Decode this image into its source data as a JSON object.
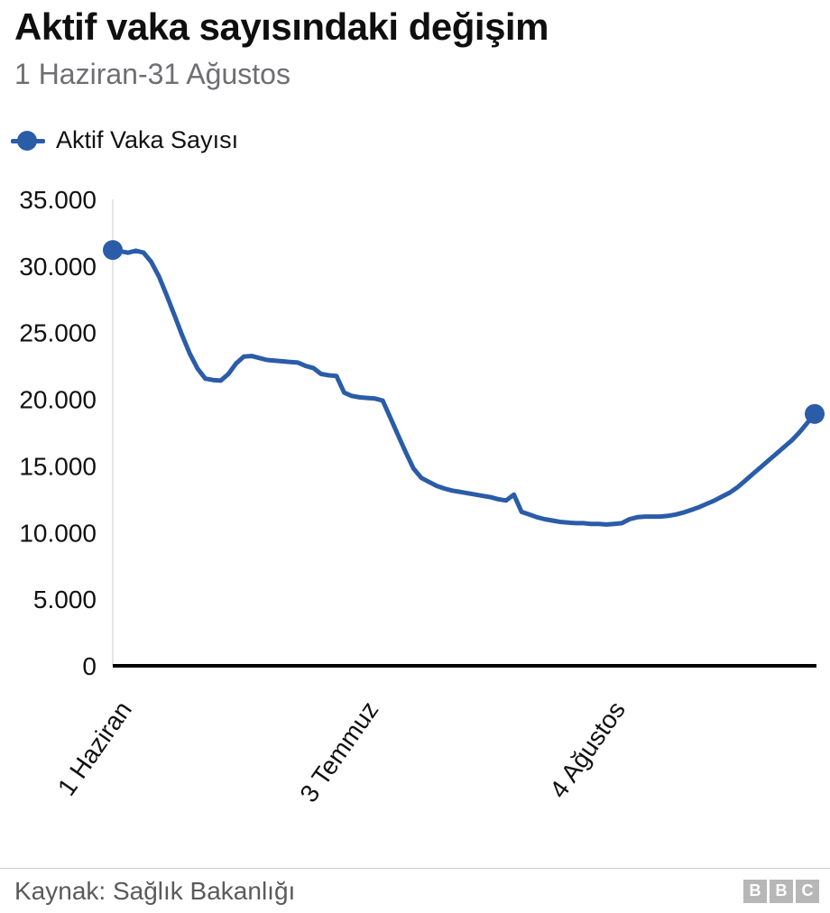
{
  "header": {
    "title": "Aktif vaka sayısındaki değişim",
    "subtitle": "1 Haziran-31 Ağustos"
  },
  "legend": {
    "label": "Aktif Vaka Sayısı"
  },
  "footer": {
    "source": "Kaynak: Sağlık Bakanlığı",
    "logo_letters": [
      "B",
      "B",
      "C"
    ]
  },
  "chart_data": {
    "type": "line",
    "title": "Aktif vaka sayısındaki değişim",
    "subtitle": "1 Haziran-31 Ağustos",
    "x_unit": "day",
    "x_range": [
      "1 Haziran",
      "31 Ağustos"
    ],
    "x_tick_labels": [
      {
        "label": "1 Haziran",
        "index": 0
      },
      {
        "label": "3 Temmuz",
        "index": 32
      },
      {
        "label": "4 Ağustos",
        "index": 64
      }
    ],
    "y_ticks": [
      0,
      5000,
      10000,
      15000,
      20000,
      25000,
      30000,
      35000
    ],
    "y_tick_labels": [
      "0",
      "5.000",
      "10.000",
      "15.000",
      "20.000",
      "25.000",
      "30.000",
      "35.000"
    ],
    "ylim": [
      0,
      35000
    ],
    "grid": false,
    "legend_position": "top-left",
    "line_color": "#2a5ca8",
    "axis_color": "#000000",
    "axis_guide_color": "#cccccc",
    "markers": "first-and-last-point",
    "series": [
      {
        "name": "Aktif Vaka Sayısı",
        "values": [
          31200,
          31100,
          31000,
          31150,
          31000,
          30300,
          29200,
          27800,
          26300,
          24800,
          23400,
          22300,
          21550,
          21450,
          21400,
          21900,
          22700,
          23200,
          23250,
          23100,
          22950,
          22900,
          22850,
          22800,
          22750,
          22500,
          22350,
          21900,
          21800,
          21750,
          20500,
          20250,
          20150,
          20100,
          20050,
          19900,
          18600,
          17300,
          16000,
          14800,
          14100,
          13800,
          13500,
          13300,
          13150,
          13050,
          12950,
          12850,
          12750,
          12650,
          12500,
          12400,
          12850,
          11550,
          11350,
          11150,
          11000,
          10900,
          10800,
          10750,
          10700,
          10700,
          10650,
          10650,
          10600,
          10650,
          10700,
          11000,
          11150,
          11200,
          11200,
          11200,
          11250,
          11350,
          11500,
          11700,
          11900,
          12150,
          12400,
          12700,
          13000,
          13400,
          13900,
          14400,
          14900,
          15400,
          15900,
          16400,
          16900,
          17500,
          18200,
          18900
        ]
      }
    ]
  }
}
